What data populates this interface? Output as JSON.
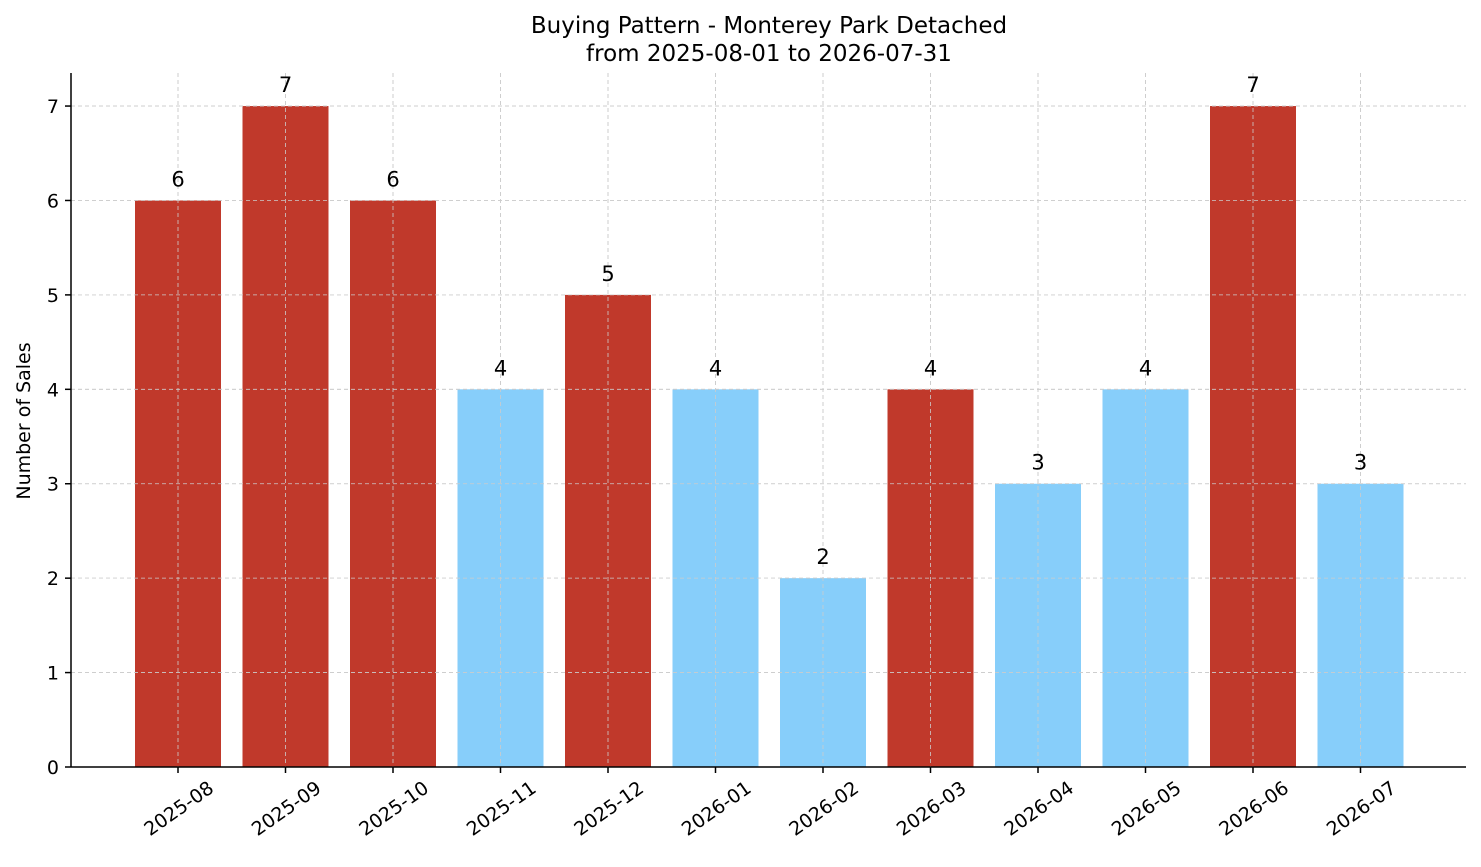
{
  "chart_data": {
    "type": "bar",
    "title": "Buying Pattern - Monterey Park Detached",
    "subtitle": "from 2025-08-01 to 2026-07-31",
    "xlabel": "",
    "ylabel": "Number of Sales",
    "categories": [
      "2025-08",
      "2025-09",
      "2025-10",
      "2025-11",
      "2025-12",
      "2026-01",
      "2026-02",
      "2026-03",
      "2026-04",
      "2026-05",
      "2026-06",
      "2026-07"
    ],
    "values": [
      6,
      7,
      6,
      4,
      5,
      4,
      2,
      4,
      3,
      4,
      7,
      3
    ],
    "bar_colors": [
      "#c0392b",
      "#c0392b",
      "#c0392b",
      "#87cefa",
      "#c0392b",
      "#87cefa",
      "#87cefa",
      "#c0392b",
      "#87cefa",
      "#87cefa",
      "#c0392b",
      "#87cefa"
    ],
    "ylim": [
      0,
      7.35
    ],
    "yticks": [
      0,
      1,
      2,
      3,
      4,
      5,
      6,
      7
    ],
    "grid": true,
    "legend": "none"
  }
}
